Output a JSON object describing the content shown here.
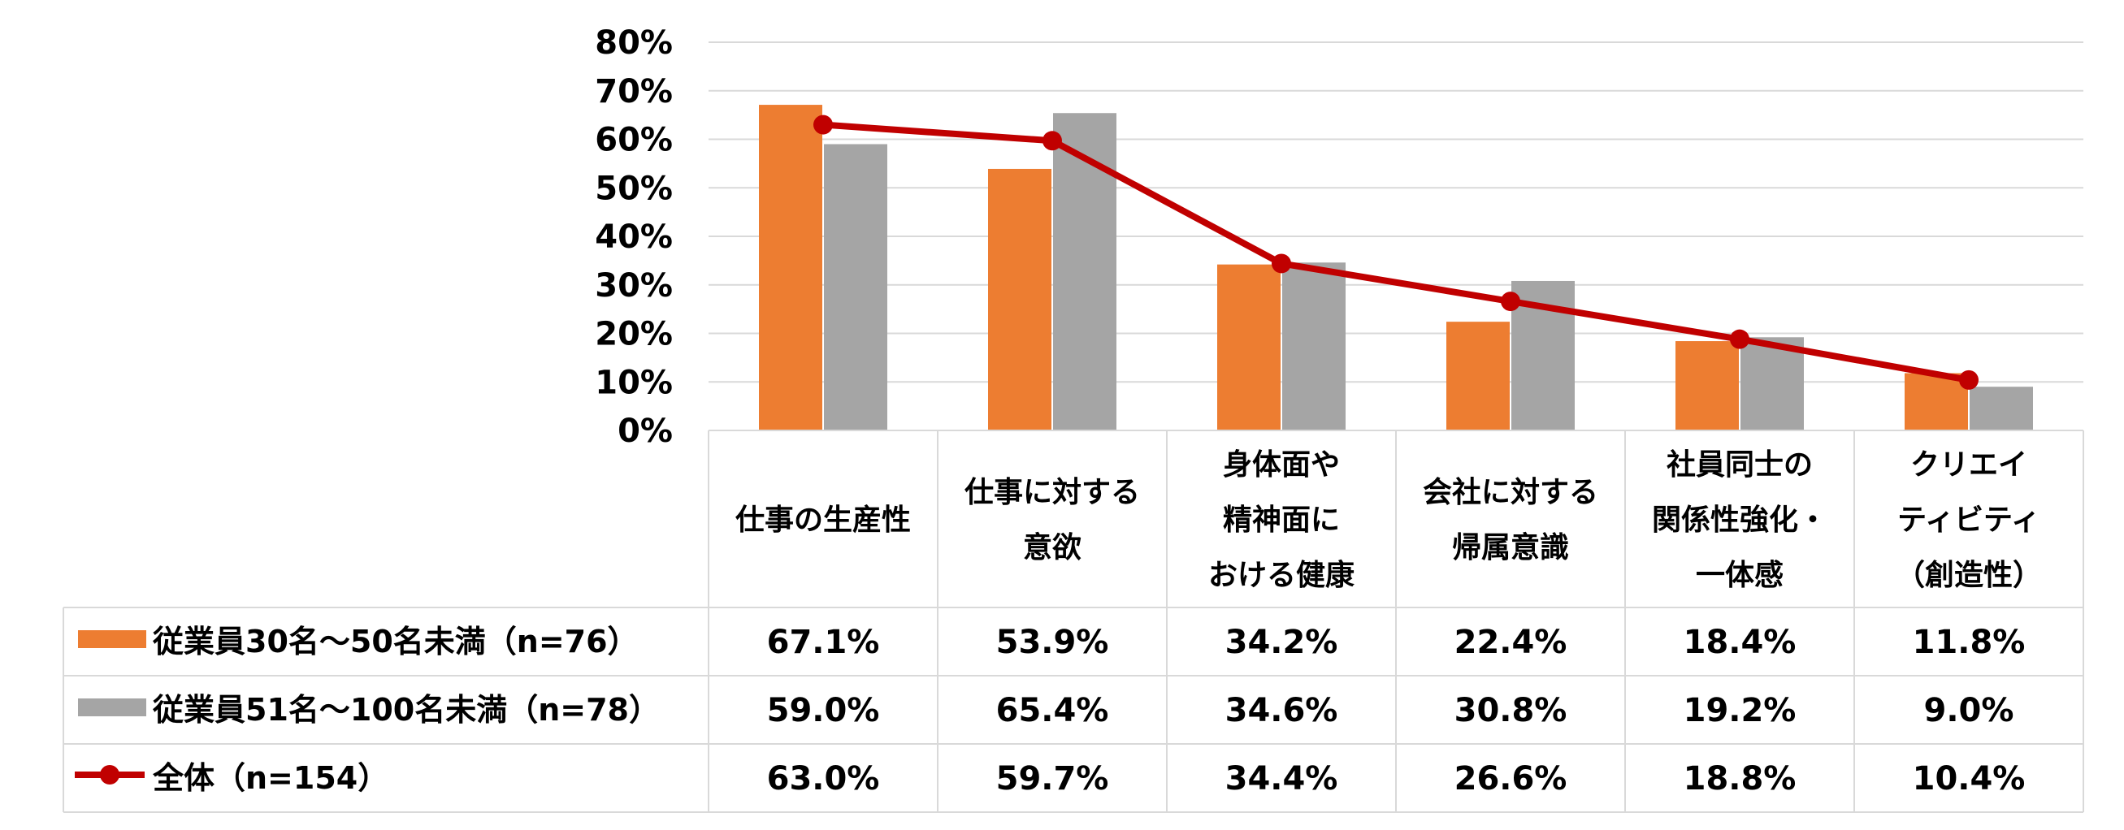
{
  "chart_data": {
    "type": "bar",
    "yticks": [
      "0%",
      "10%",
      "20%",
      "30%",
      "40%",
      "50%",
      "60%",
      "70%",
      "80%"
    ],
    "ylim": [
      0,
      80
    ],
    "grid": true,
    "legend_placement": "data-table",
    "categories": [
      {
        "lines": [
          "仕事の生産性"
        ]
      },
      {
        "lines": [
          "仕事に対する",
          "意欲"
        ]
      },
      {
        "lines": [
          "身体面や",
          "精神面に",
          "おける健康"
        ]
      },
      {
        "lines": [
          "会社に対する",
          "帰属意識"
        ]
      },
      {
        "lines": [
          "社員同士の",
          "関係性強化・",
          "一体感"
        ]
      },
      {
        "lines": [
          "クリエイ",
          "ティビティ",
          "（創造性）"
        ]
      }
    ],
    "series": [
      {
        "name": "従業員30名～50名未満（n=76）",
        "kind": "bar",
        "color": "#ED7D31",
        "values": [
          67.1,
          53.9,
          34.2,
          22.4,
          18.4,
          11.8
        ],
        "labels": [
          "67.1%",
          "53.9%",
          "34.2%",
          "22.4%",
          "18.4%",
          "11.8%"
        ]
      },
      {
        "name": "従業員51名～100名未満（n=78）",
        "kind": "bar",
        "color": "#A5A5A5",
        "values": [
          59.0,
          65.4,
          34.6,
          30.8,
          19.2,
          9.0
        ],
        "labels": [
          "59.0%",
          "65.4%",
          "34.6%",
          "30.8%",
          "19.2%",
          "9.0%"
        ]
      },
      {
        "name": "全体（n=154）",
        "kind": "line",
        "color": "#C00000",
        "values": [
          63.0,
          59.7,
          34.4,
          26.6,
          18.8,
          10.4
        ],
        "labels": [
          "63.0%",
          "59.7%",
          "34.4%",
          "26.6%",
          "18.8%",
          "10.4%"
        ]
      }
    ]
  }
}
